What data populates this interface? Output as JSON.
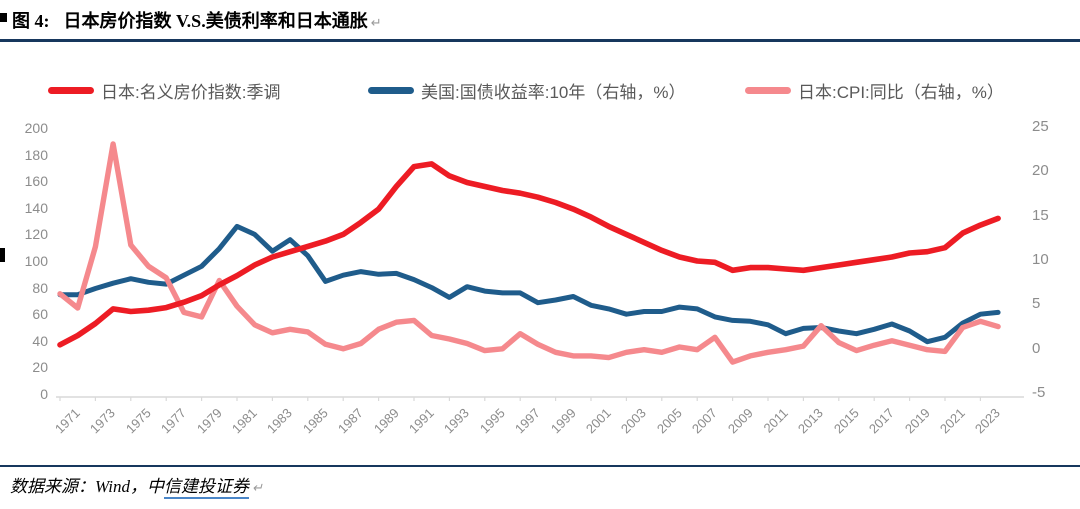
{
  "header": {
    "title_prefix": "图 4:",
    "title": "日本房价指数 V.S.美债利率和日本通胀",
    "paragraph_mark": "↵"
  },
  "footer": {
    "source_prefix": "数据来源：Wind，中",
    "source_link": "信建投证券",
    "paragraph_mark": "↵"
  },
  "colors": {
    "red_series": "#ed1c24",
    "blue_series": "#1f5c8b",
    "pink_series": "#f5898d",
    "rule": "#17375d",
    "axis_text": "#8c8c8c",
    "axis_line": "#d9d9d9",
    "legend_text": "#595959"
  },
  "legend": [
    {
      "label": "日本:名义房价指数:季调"
    },
    {
      "label": "美国:国债收益率:10年（右轴，%）"
    },
    {
      "label": "日本:CPI:同比（右轴，%）"
    }
  ],
  "chart_data": {
    "type": "line",
    "title": "日本房价指数 V.S.美债利率和日本通胀",
    "grid": false,
    "legend_position": "top",
    "years": [
      1971,
      1972,
      1973,
      1974,
      1975,
      1976,
      1977,
      1978,
      1979,
      1980,
      1981,
      1982,
      1983,
      1984,
      1985,
      1986,
      1987,
      1988,
      1989,
      1990,
      1991,
      1992,
      1993,
      1994,
      1995,
      1996,
      1997,
      1998,
      1999,
      2000,
      2001,
      2002,
      2003,
      2004,
      2005,
      2006,
      2007,
      2008,
      2009,
      2010,
      2011,
      2012,
      2013,
      2014,
      2015,
      2016,
      2017,
      2018,
      2019,
      2020,
      2021,
      2022,
      2023,
      2024
    ],
    "series": [
      {
        "name": "日本:名义房价指数:季调",
        "axis": "left",
        "color": "#ed1c24",
        "values": [
          37,
          44,
          53,
          64,
          62,
          63,
          65,
          69,
          74,
          82,
          89,
          97,
          103,
          107,
          111,
          115,
          120,
          129,
          139,
          156,
          171,
          173,
          164,
          159,
          156,
          153,
          151,
          148,
          144,
          139,
          133,
          126,
          120,
          114,
          108,
          103,
          100,
          99,
          93,
          95,
          95,
          94,
          93,
          95,
          97,
          99,
          101,
          103,
          106,
          107,
          110,
          121,
          127,
          132
        ]
      },
      {
        "name": "美国:国债收益率:10年（右轴，%）",
        "axis": "right",
        "color": "#1f5c8b",
        "values": [
          6.2,
          6.2,
          6.9,
          7.5,
          8.0,
          7.6,
          7.4,
          8.4,
          9.4,
          11.4,
          13.9,
          13.0,
          11.1,
          12.4,
          10.6,
          7.7,
          8.4,
          8.8,
          8.5,
          8.6,
          7.9,
          7.0,
          5.9,
          7.1,
          6.6,
          6.4,
          6.4,
          5.3,
          5.6,
          6.0,
          5.0,
          4.6,
          4.0,
          4.3,
          4.3,
          4.8,
          4.6,
          3.7,
          3.3,
          3.2,
          2.8,
          1.8,
          2.4,
          2.5,
          2.1,
          1.8,
          2.3,
          2.9,
          2.1,
          0.9,
          1.4,
          3.0,
          4.0,
          4.2
        ]
      },
      {
        "name": "日本:CPI:同比（右轴，%）",
        "axis": "right",
        "color": "#f5898d",
        "values": [
          6.3,
          4.7,
          11.6,
          23.2,
          11.8,
          9.4,
          8.1,
          4.2,
          3.7,
          7.8,
          4.9,
          2.8,
          1.9,
          2.3,
          2.0,
          0.6,
          0.1,
          0.7,
          2.3,
          3.1,
          3.3,
          1.6,
          1.2,
          0.7,
          -0.1,
          0.1,
          1.8,
          0.6,
          -0.3,
          -0.7,
          -0.7,
          -0.9,
          -0.3,
          0.0,
          -0.3,
          0.3,
          0.0,
          1.4,
          -1.4,
          -0.7,
          -0.3,
          0.0,
          0.4,
          2.7,
          0.8,
          -0.1,
          0.5,
          1.0,
          0.5,
          0.0,
          -0.2,
          2.5,
          3.2,
          2.6
        ]
      }
    ],
    "left_axis": {
      "min": 0,
      "max": 200,
      "ticks": [
        0,
        20,
        40,
        60,
        80,
        100,
        120,
        140,
        160,
        180,
        200
      ]
    },
    "right_axis": {
      "min": -5,
      "max": 25,
      "ticks": [
        -5,
        0,
        5,
        10,
        15,
        20,
        25
      ]
    },
    "x_ticks": [
      1971,
      1973,
      1975,
      1977,
      1979,
      1981,
      1983,
      1985,
      1987,
      1989,
      1991,
      1993,
      1995,
      1997,
      1999,
      2001,
      2003,
      2005,
      2007,
      2009,
      2011,
      2013,
      2015,
      2017,
      2019,
      2021,
      2023
    ]
  }
}
